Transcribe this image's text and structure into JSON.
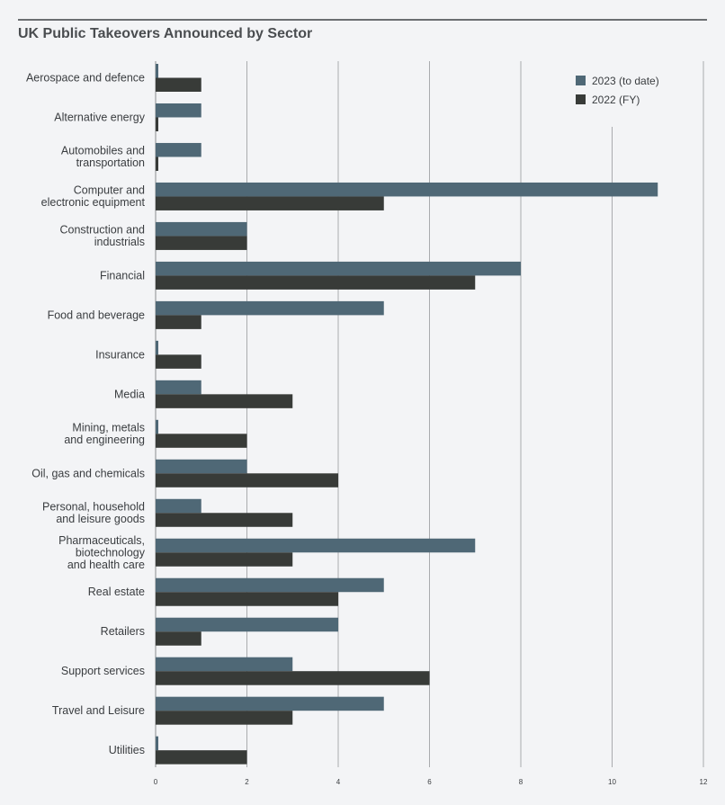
{
  "title": "UK Public Takeovers Announced by Sector",
  "colors": {
    "series_2023": "#4f6876",
    "series_2022": "#383b38",
    "grid": "#a9abae",
    "background": "#f3f4f6"
  },
  "chart_data": {
    "type": "bar",
    "orientation": "horizontal",
    "title": "UK Public Takeovers Announced by Sector",
    "categories": [
      [
        "Aerospace and defence"
      ],
      [
        "Alternative energy"
      ],
      [
        "Automobiles and",
        "transportation"
      ],
      [
        "Computer and",
        "electronic equipment"
      ],
      [
        "Construction and",
        "industrials"
      ],
      [
        "Financial"
      ],
      [
        "Food and beverage"
      ],
      [
        "Insurance"
      ],
      [
        "Media"
      ],
      [
        "Mining, metals",
        "and engineering"
      ],
      [
        "Oil, gas and chemicals"
      ],
      [
        "Personal, household",
        "and leisure goods"
      ],
      [
        "Pharmaceuticals,",
        "biotechnology",
        "and health care"
      ],
      [
        "Real estate"
      ],
      [
        "Retailers"
      ],
      [
        "Support services"
      ],
      [
        "Travel and Leisure"
      ],
      [
        "Utilities"
      ]
    ],
    "series": [
      {
        "name": "2023 (to date)",
        "color": "#4f6876",
        "values": [
          0,
          1,
          1,
          11,
          2,
          8,
          5,
          0,
          1,
          0,
          2,
          1,
          7,
          5,
          4,
          3,
          5,
          0
        ]
      },
      {
        "name": "2022 (FY)",
        "color": "#383b38",
        "values": [
          1,
          0,
          0,
          5,
          2,
          7,
          1,
          1,
          3,
          2,
          4,
          3,
          3,
          4,
          1,
          6,
          3,
          2
        ]
      }
    ],
    "xlim": [
      0,
      12
    ],
    "xticks": [
      0,
      2,
      4,
      6,
      8,
      10,
      12
    ],
    "grid": true,
    "legend_position": "top-right",
    "xlabel": "",
    "ylabel": ""
  }
}
